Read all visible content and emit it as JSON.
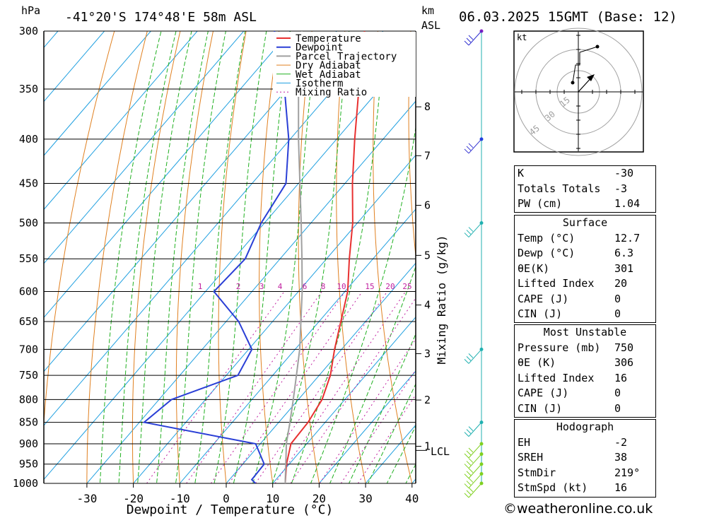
{
  "header": {
    "pressure_unit": "hPa",
    "location": "-41°20'S 174°48'E 58m ASL",
    "km_label": "km",
    "asl_label": "ASL",
    "datetime": "06.03.2025 15GMT (Base: 12)"
  },
  "footer": {
    "credit": "©weatheronline.co.uk"
  },
  "colors": {
    "temperature": "#e83030",
    "dewpoint": "#2a3fd6",
    "parcel": "#a0a0a0",
    "dry_adiabat": "#e08020",
    "wet_adiabat": "#20b020",
    "isotherm": "#20a0e0",
    "mixing_ratio": "#c020a0",
    "wind": "#20b0b0"
  },
  "chart_data": {
    "type": "line",
    "subtype": "skew-T log-p diagram",
    "xlabel": "Dewpoint / Temperature (°C)",
    "ylabel": "hPa",
    "xlim": [
      -40,
      40
    ],
    "ylim": [
      1000,
      300
    ],
    "yscale": "log",
    "x_ticks": [
      -30,
      -20,
      -10,
      0,
      10,
      20,
      30,
      40
    ],
    "pressure_levels": [
      300,
      350,
      400,
      450,
      500,
      550,
      600,
      650,
      700,
      750,
      800,
      850,
      900,
      950,
      1000
    ],
    "height_ticks": [
      {
        "km": "8",
        "p": 367
      },
      {
        "km": "7",
        "p": 418
      },
      {
        "km": "6",
        "p": 477
      },
      {
        "km": "5",
        "p": 545
      },
      {
        "km": "4",
        "p": 622
      },
      {
        "km": "3",
        "p": 708
      },
      {
        "km": "2",
        "p": 801
      },
      {
        "km": "1",
        "p": 906
      }
    ],
    "lcl": {
      "label": "LCL",
      "p": 916
    },
    "mixing_ratio_axis_label": "Mixing Ratio (g/kg)",
    "mixing_ratio_labels": [
      "1",
      "2",
      "3",
      "4",
      "6",
      "8",
      "10",
      "15",
      "20",
      "25"
    ],
    "legend": [
      "Temperature",
      "Dewpoint",
      "Parcel Trajectory",
      "Dry Adiabat",
      "Wet Adiabat",
      "Isotherm",
      "Mixing Ratio"
    ],
    "legend_position": "top-right",
    "series": [
      {
        "name": "Temperature",
        "points": [
          [
            1000,
            12.7
          ],
          [
            950,
            9.4
          ],
          [
            900,
            6.6
          ],
          [
            850,
            6.3
          ],
          [
            800,
            5.1
          ],
          [
            750,
            2.4
          ],
          [
            700,
            -1.5
          ],
          [
            650,
            -5.3
          ],
          [
            600,
            -9.4
          ],
          [
            550,
            -15.1
          ],
          [
            500,
            -21.0
          ],
          [
            450,
            -28.4
          ],
          [
            400,
            -36.1
          ],
          [
            350,
            -44.5
          ],
          [
            300,
            -54.0
          ]
        ]
      },
      {
        "name": "Dewpoint",
        "points": [
          [
            1000,
            6.3
          ],
          [
            990,
            4.8
          ],
          [
            950,
            4.6
          ],
          [
            900,
            -1.0
          ],
          [
            850,
            -29.0
          ],
          [
            800,
            -27.3
          ],
          [
            750,
            -17.5
          ],
          [
            700,
            -19.3
          ],
          [
            650,
            -27.3
          ],
          [
            600,
            -38.2
          ],
          [
            550,
            -37.5
          ],
          [
            500,
            -40.7
          ],
          [
            450,
            -42.7
          ],
          [
            400,
            -50.3
          ],
          [
            350,
            -60.5
          ],
          [
            300,
            -73.4
          ]
        ]
      },
      {
        "name": "Parcel Trajectory",
        "points": [
          [
            1000,
            12.7
          ],
          [
            916,
            6.8
          ],
          [
            900,
            5.6
          ],
          [
            850,
            2.4
          ],
          [
            800,
            -1.1
          ],
          [
            750,
            -4.9
          ],
          [
            700,
            -9.0
          ],
          [
            650,
            -13.9
          ],
          [
            600,
            -19.2
          ],
          [
            550,
            -25.3
          ],
          [
            500,
            -32.1
          ],
          [
            450,
            -39.7
          ],
          [
            400,
            -48.2
          ],
          [
            350,
            -57.5
          ],
          [
            300,
            -67.5
          ]
        ]
      }
    ],
    "wind_levels": [
      300,
      400,
      500,
      700,
      850,
      900,
      925,
      950,
      975,
      1000
    ]
  },
  "hodograph": {
    "unit": "kt",
    "rings": [
      "15",
      "30",
      "45"
    ]
  },
  "indices": {
    "basic": [
      {
        "label": "K",
        "value": "-30"
      },
      {
        "label": "Totals Totals",
        "value": "-3"
      },
      {
        "label": "PW (cm)",
        "value": "1.04"
      }
    ],
    "surface_title": "Surface",
    "surface": [
      {
        "label": "Temp (°C)",
        "value": "12.7"
      },
      {
        "label": "Dewp (°C)",
        "value": "6.3"
      },
      {
        "label": "θE(K)",
        "value": "301"
      },
      {
        "label": "Lifted Index",
        "value": "20"
      },
      {
        "label": "CAPE (J)",
        "value": "0"
      },
      {
        "label": "CIN (J)",
        "value": "0"
      }
    ],
    "unstable_title": "Most Unstable",
    "unstable": [
      {
        "label": "Pressure (mb)",
        "value": "750"
      },
      {
        "label": "θE (K)",
        "value": "306"
      },
      {
        "label": "Lifted Index",
        "value": "16"
      },
      {
        "label": "CAPE (J)",
        "value": "0"
      },
      {
        "label": "CIN (J)",
        "value": "0"
      }
    ],
    "hodo_title": "Hodograph",
    "hodo": [
      {
        "label": "EH",
        "value": "-2"
      },
      {
        "label": "SREH",
        "value": "38"
      },
      {
        "label": "StmDir",
        "value": "219°"
      },
      {
        "label": "StmSpd (kt)",
        "value": "16"
      }
    ]
  }
}
